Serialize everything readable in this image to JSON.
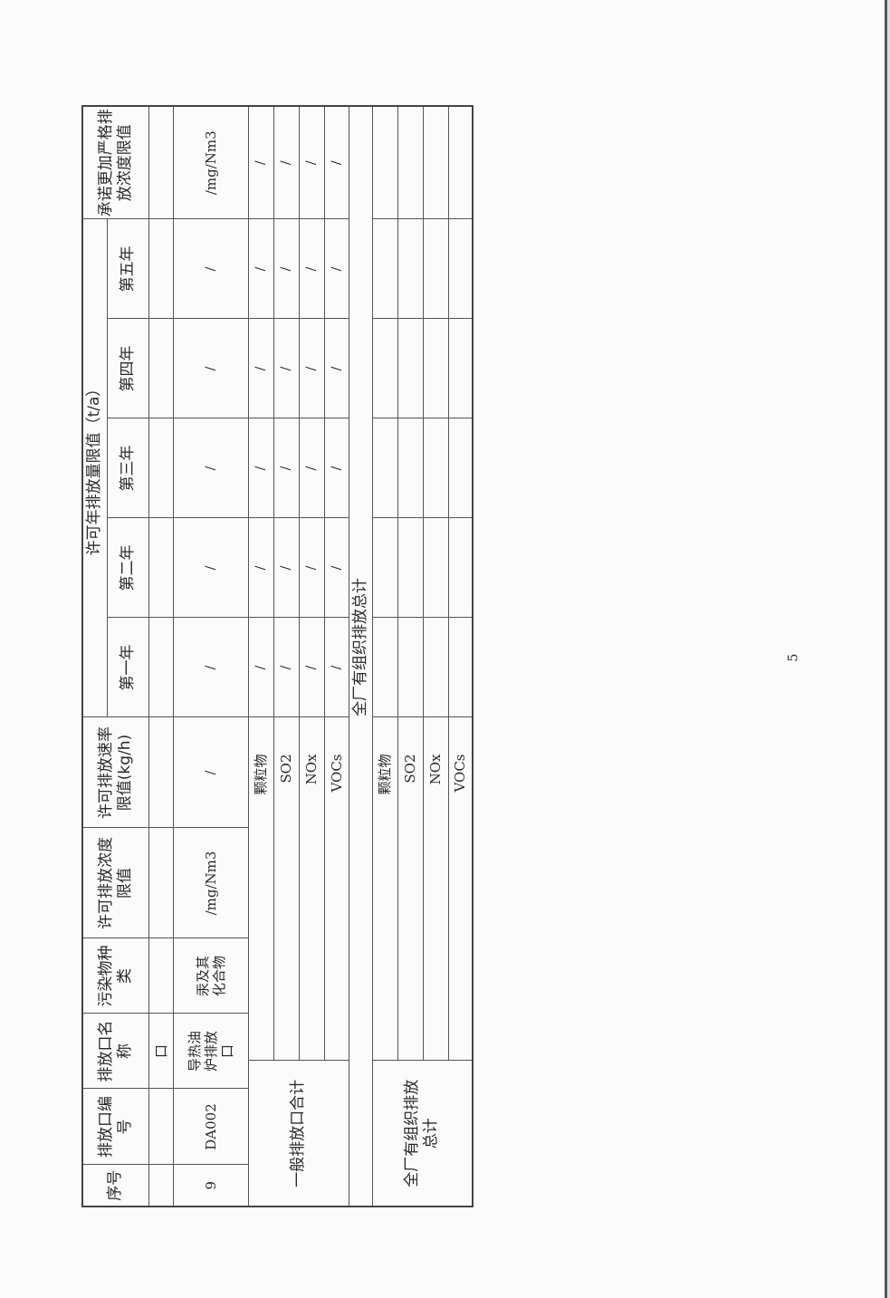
{
  "headers": {
    "seq": "序号",
    "outlet_code": "排放口编号",
    "outlet_name": "排放口名称",
    "pollutant": "污染物种类",
    "conc_limit": "许可排放浓度限值",
    "rate_limit": "许可排放速率限值(kg/h)",
    "annual_limit": "许可年排放量限值（t/a）",
    "years": [
      "第一年",
      "第二年",
      "第三年",
      "第四年",
      "第五年"
    ],
    "commitment": "承诺更加严格排放浓度限值"
  },
  "carryover_row": {
    "outlet_name": "口"
  },
  "row9": {
    "seq": "9",
    "outlet_code": "DA002",
    "outlet_name": "导热油炉排放口",
    "pollutant": "汞及其化合物",
    "conc_limit": "/mg/Nm3",
    "rate_limit": "/",
    "years": [
      "/",
      "/",
      "/",
      "/",
      "/"
    ],
    "commitment": "/mg/Nm3"
  },
  "general_subtotal": {
    "label": "一般排放口合计",
    "rows": [
      {
        "pollutant": "颗粒物",
        "years": [
          "/",
          "/",
          "/",
          "/",
          "/"
        ],
        "commitment": "/"
      },
      {
        "pollutant": "SO2",
        "years": [
          "/",
          "/",
          "/",
          "/",
          "/"
        ],
        "commitment": "/"
      },
      {
        "pollutant": "NOx",
        "years": [
          "/",
          "/",
          "/",
          "/",
          "/"
        ],
        "commitment": "/"
      },
      {
        "pollutant": "VOCs",
        "years": [
          "/",
          "/",
          "/",
          "/",
          "/"
        ],
        "commitment": "/"
      }
    ]
  },
  "plant_total_section": "全厂有组织排放总计",
  "plant_total": {
    "label": "全厂有组织排放总计",
    "rows": [
      {
        "pollutant": "颗粒物"
      },
      {
        "pollutant": "SO2"
      },
      {
        "pollutant": "NOx"
      },
      {
        "pollutant": "VOCs"
      }
    ]
  },
  "page_number": "5"
}
